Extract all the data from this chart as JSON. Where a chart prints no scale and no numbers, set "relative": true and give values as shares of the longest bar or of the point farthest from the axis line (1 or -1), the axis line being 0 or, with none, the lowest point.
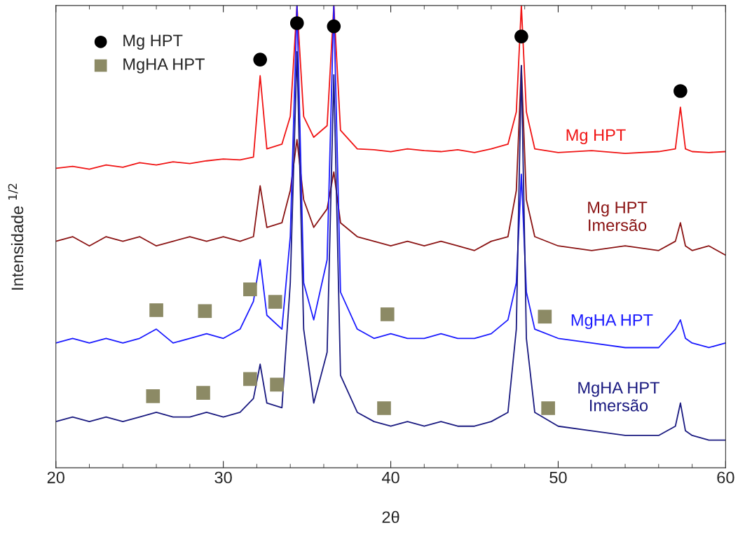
{
  "chart_data": {
    "type": "line",
    "relative": true,
    "xlabel": "2θ",
    "ylabel": "Intensidade $^{1/2}$",
    "x": [
      20,
      21,
      22,
      23,
      24,
      25,
      26,
      27,
      28,
      29,
      30,
      31,
      31.8,
      32.2,
      32.6,
      33.5,
      34.0,
      34.4,
      34.8,
      35.4,
      36.2,
      36.6,
      37.0,
      38,
      39,
      40,
      41,
      42,
      43,
      44,
      45,
      46,
      47,
      47.5,
      47.8,
      48.1,
      48.6,
      50,
      52,
      54,
      56,
      57.0,
      57.3,
      57.6,
      58,
      59,
      60
    ],
    "xlim": [
      20,
      60
    ],
    "xticks": [
      20,
      30,
      40,
      50,
      60
    ],
    "legend": "top left",
    "marker": "none",
    "line_style": "solid",
    "grid": false,
    "series": [
      {
        "name": "Mg HPT",
        "color": "#f01414",
        "values": [
          0.648,
          0.652,
          0.646,
          0.655,
          0.65,
          0.66,
          0.655,
          0.662,
          0.658,
          0.664,
          0.668,
          0.666,
          0.672,
          0.848,
          0.69,
          0.7,
          0.76,
          1,
          0.76,
          0.715,
          0.74,
          1,
          0.73,
          0.69,
          0.688,
          0.684,
          0.69,
          0.686,
          0.684,
          0.688,
          0.682,
          0.69,
          0.7,
          0.77,
          1,
          0.77,
          0.69,
          0.682,
          0.686,
          0.68,
          0.684,
          0.69,
          0.78,
          0.69,
          0.684,
          0.682,
          0.684
        ]
      },
      {
        "name": "Mg HPT\nImersão",
        "color": "#8b1414",
        "values": [
          0.49,
          0.5,
          0.48,
          0.5,
          0.49,
          0.5,
          0.48,
          0.49,
          0.5,
          0.49,
          0.5,
          0.49,
          0.5,
          0.61,
          0.52,
          0.53,
          0.6,
          0.71,
          0.58,
          0.52,
          0.56,
          0.64,
          0.53,
          0.5,
          0.49,
          0.48,
          0.49,
          0.48,
          0.49,
          0.48,
          0.47,
          0.49,
          0.5,
          0.6,
          0.87,
          0.58,
          0.5,
          0.48,
          0.47,
          0.48,
          0.47,
          0.49,
          0.53,
          0.48,
          0.47,
          0.48,
          0.46
        ]
      },
      {
        "name": "MgHA HPT",
        "color": "#1a1aff",
        "values": [
          0.27,
          0.28,
          0.27,
          0.28,
          0.27,
          0.28,
          0.3,
          0.27,
          0.28,
          0.29,
          0.28,
          0.3,
          0.36,
          0.45,
          0.33,
          0.3,
          0.5,
          1,
          0.4,
          0.32,
          0.45,
          1,
          0.38,
          0.3,
          0.28,
          0.29,
          0.28,
          0.28,
          0.29,
          0.28,
          0.28,
          0.29,
          0.32,
          0.4,
          0.635,
          0.38,
          0.3,
          0.28,
          0.27,
          0.26,
          0.26,
          0.3,
          0.32,
          0.28,
          0.27,
          0.26,
          0.27
        ]
      },
      {
        "name": "MgHA HPT\nImersão",
        "color": "#1a1a80",
        "values": [
          0.1,
          0.11,
          0.1,
          0.11,
          0.1,
          0.11,
          0.12,
          0.11,
          0.11,
          0.12,
          0.11,
          0.12,
          0.15,
          0.224,
          0.14,
          0.13,
          0.4,
          0.9,
          0.3,
          0.14,
          0.25,
          0.85,
          0.2,
          0.12,
          0.1,
          0.09,
          0.1,
          0.09,
          0.1,
          0.09,
          0.09,
          0.1,
          0.12,
          0.3,
          0.87,
          0.28,
          0.12,
          0.09,
          0.08,
          0.07,
          0.07,
          0.09,
          0.14,
          0.08,
          0.07,
          0.06,
          0.06
        ]
      },
      {
        "type": "scatter",
        "name": "Mg HPT",
        "color": "#000000",
        "marker": "circle",
        "x": [
          32.2,
          34.4,
          36.6,
          47.8,
          57.3
        ],
        "values": [
          0.883,
          0.962,
          0.955,
          0.933,
          0.815
        ]
      },
      {
        "type": "scatter",
        "name": "MgHA HPT",
        "color": "#8c8a65",
        "marker": "square",
        "x": [
          26,
          28.9,
          31.6,
          33.1,
          39.8,
          49.2,
          25.8,
          28.8,
          31.6,
          33.2,
          39.6,
          49.4
        ],
        "values": [
          0.341,
          0.339,
          0.386,
          0.359,
          0.332,
          0.327,
          0.155,
          0.162,
          0.192,
          0.18,
          0.129,
          0.129
        ]
      }
    ]
  }
}
